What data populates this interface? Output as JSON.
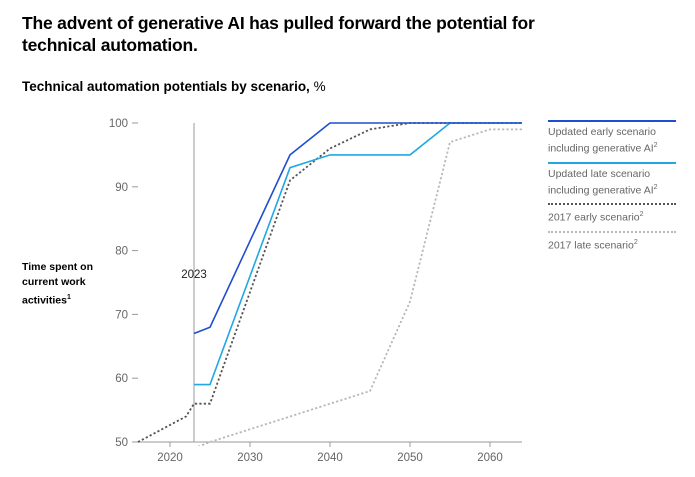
{
  "header": {
    "title": "The advent of generative AI has pulled forward the potential for technical automation.",
    "subtitle": "Technical automation potentials by scenario,",
    "subtitle_unit": "%"
  },
  "chart_data": {
    "type": "line",
    "title": "Technical automation potentials by scenario, %",
    "ylabel": "Time spent on current work activities",
    "ylabel_footnote": "1",
    "xlabel": "",
    "xlim": [
      2016,
      2064
    ],
    "ylim": [
      50,
      100
    ],
    "x_ticks": [
      2020,
      2030,
      2040,
      2050,
      2060
    ],
    "y_ticks": [
      50,
      60,
      70,
      80,
      90,
      100
    ],
    "grid": false,
    "legend_position": "right",
    "annotation": {
      "label": "2023",
      "x": 2023
    },
    "series": [
      {
        "name": "Updated early scenario including generative AI",
        "footnote": "2",
        "color": "#1f4fd1",
        "style": "solid",
        "x": [
          2023,
          2025,
          2035,
          2040,
          2064
        ],
        "values": [
          67,
          68,
          95,
          100,
          100
        ]
      },
      {
        "name": "Updated late scenario including generative AI",
        "footnote": "2",
        "color": "#21a7e3",
        "style": "solid",
        "x": [
          2023,
          2025,
          2035,
          2040,
          2050,
          2055,
          2064
        ],
        "values": [
          59,
          59,
          93,
          95,
          95,
          100,
          100
        ]
      },
      {
        "name": "2017 early scenario",
        "footnote": "2",
        "color": "#555555",
        "style": "dotted",
        "x": [
          2016,
          2022,
          2023,
          2025,
          2035,
          2040,
          2045,
          2050,
          2064
        ],
        "values": [
          50,
          54,
          56,
          56,
          91,
          96,
          99,
          100,
          100
        ]
      },
      {
        "name": "2017 late scenario",
        "footnote": "2",
        "color": "#b8b8b8",
        "style": "dotted",
        "x": [
          2023,
          2025,
          2045,
          2050,
          2055,
          2060,
          2064
        ],
        "values": [
          49,
          50,
          58,
          72,
          97,
          99,
          99
        ]
      }
    ]
  }
}
